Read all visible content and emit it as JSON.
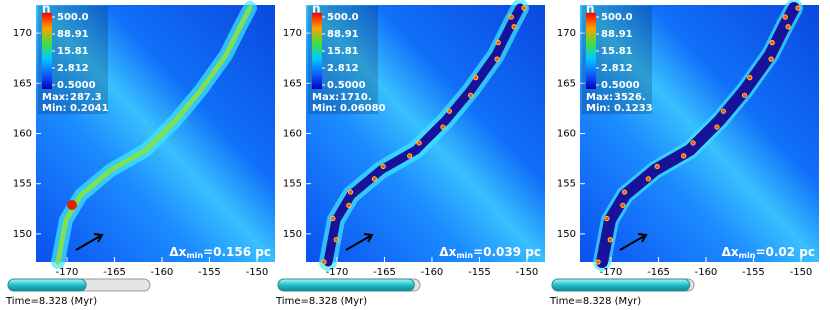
{
  "chart_data": [
    {
      "type": "heatmap",
      "xlim": [
        -173.26,
        -148.1
      ],
      "ylim": [
        147.2,
        172.8
      ],
      "xticks": [
        -170,
        -165,
        -160,
        -155,
        -150
      ],
      "yticks": [
        150,
        155,
        160,
        165,
        170
      ],
      "colorbar": {
        "label": "n",
        "log": true,
        "clim": [
          0.5,
          500
        ],
        "ticks": [
          {
            "value": 500,
            "label": "500.0"
          },
          88.91,
          15.81,
          2.812,
          {
            "value": 0.5,
            "label": "0.5000"
          }
        ]
      },
      "max_label": "Max:",
      "max": 287.3,
      "min_label": "Min:",
      "min": 0.2041,
      "resolution": {
        "symbol": "Δx",
        "sub": "min",
        "text": "=0.156 pc"
      },
      "time": "Time=8.328 (Myr)"
    },
    {
      "type": "heatmap",
      "xlim": [
        -173.26,
        -148.1
      ],
      "ylim": [
        147.2,
        172.8
      ],
      "xticks": [
        -170,
        -165,
        -160,
        -155,
        -150
      ],
      "yticks": [
        150,
        155,
        160,
        165,
        170
      ],
      "colorbar": {
        "label": "n",
        "log": true,
        "clim": [
          0.5,
          500
        ],
        "ticks": [
          {
            "value": 500,
            "label": "500.0"
          },
          88.91,
          15.81,
          2.812,
          {
            "value": 0.5,
            "label": "0.5000"
          }
        ]
      },
      "max_label": "Max:",
      "max": {
        "value": 1710,
        "label": "1710."
      },
      "min_label": "Min:",
      "min": {
        "value": 0.0608,
        "label": "0.06080"
      },
      "resolution": {
        "symbol": "Δx",
        "sub": "min",
        "text": "=0.039 pc"
      },
      "time": "Time=8.328 (Myr)"
    },
    {
      "type": "heatmap",
      "xlim": [
        -173.26,
        -148.1
      ],
      "ylim": [
        147.2,
        172.8
      ],
      "xticks": [
        -170,
        -165,
        -160,
        -155,
        -150
      ],
      "yticks": [
        150,
        155,
        160,
        165,
        170
      ],
      "colorbar": {
        "label": "n",
        "log": true,
        "clim": [
          0.5,
          500
        ],
        "ticks": [
          {
            "value": 500,
            "label": "500.0"
          },
          88.91,
          15.81,
          2.812,
          {
            "value": 0.5,
            "label": "0.5000"
          }
        ]
      },
      "max_label": "Max:",
      "max": {
        "value": 3526,
        "label": "3526."
      },
      "min_label": "Min:",
      "min": 0.1233,
      "resolution": {
        "symbol": "Δx",
        "sub": "min",
        "text": "=0.02 pc"
      },
      "time": "Time=8.328 (Myr)"
    }
  ]
}
